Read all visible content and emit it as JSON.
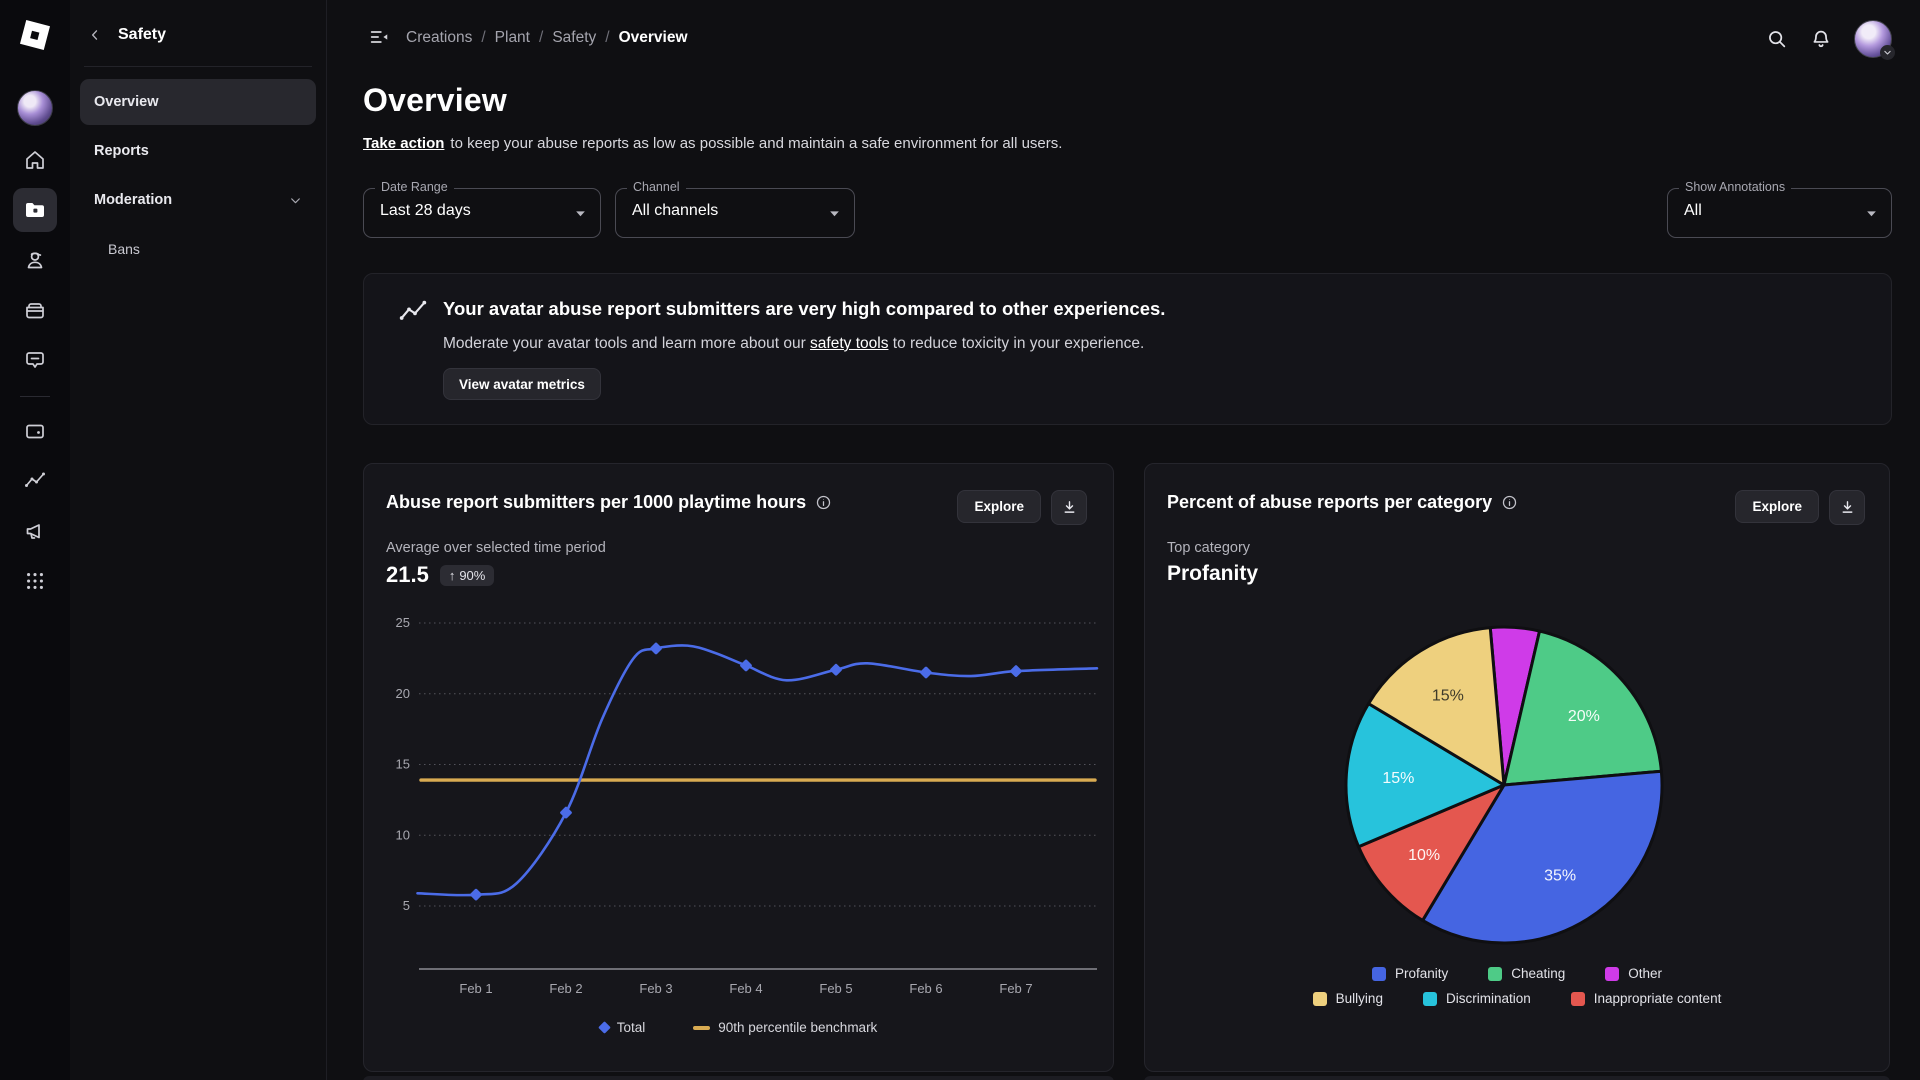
{
  "rail": {
    "icons": [
      "roblox-logo",
      "user-avatar",
      "home",
      "creations-folder",
      "avatar-person",
      "store-box",
      "messages",
      "wallet",
      "analytics",
      "megaphone",
      "apps-grid"
    ],
    "active_icon": "creations-folder"
  },
  "sidebar": {
    "title": "Safety",
    "items": [
      {
        "label": "Overview",
        "active": true
      },
      {
        "label": "Reports",
        "active": false
      },
      {
        "label": "Moderation",
        "active": false,
        "expandable": true
      },
      {
        "label": "Bans",
        "active": false,
        "indented": true
      }
    ]
  },
  "topbar": {
    "breadcrumbs": [
      "Creations",
      "Plant",
      "Safety",
      "Overview"
    ],
    "separator": "/"
  },
  "page": {
    "title": "Overview",
    "subtitle_link": "Take action",
    "subtitle_rest": "to keep your abuse reports as low as possible and maintain a safe environment for all users."
  },
  "filters": [
    {
      "label": "Date Range",
      "value": "Last 28 days"
    },
    {
      "label": "Channel",
      "value": "All channels"
    },
    {
      "label": "Show Annotations",
      "value": "All"
    }
  ],
  "banner": {
    "title": "Your avatar abuse report submitters are very high compared to other experiences.",
    "body_prefix": "Moderate your avatar tools and learn more about our ",
    "body_link": "safety tools",
    "body_suffix": " to reduce toxicity in your experience.",
    "button_label": "View avatar metrics"
  },
  "chart_data": [
    {
      "type": "line",
      "title": "Abuse report submitters per 1000 playtime hours",
      "kpi_label": "Average over selected time period",
      "kpi_value": "21.5",
      "kpi_arrow": "↑",
      "kpi_delta": "90%",
      "kpi_delta_direction": "up",
      "explore_label": "Explore",
      "categories": [
        "Feb 1",
        "Feb 2",
        "Feb 3",
        "Feb 4",
        "Feb 5",
        "Feb 6",
        "Feb 7"
      ],
      "series": [
        {
          "name": "Total",
          "color": "#4b6ce8",
          "marker": "diamond",
          "values": [
            5.8,
            11.6,
            23.2,
            22.0,
            21.7,
            21.5,
            21.6
          ]
        },
        {
          "name": "90th percentile benchmark",
          "color": "#d9ab52",
          "type": "horizontal-benchmark",
          "value": 13.9
        }
      ],
      "curve_samples": [
        [
          0.35,
          5.9
        ],
        [
          1,
          5.8
        ],
        [
          1.45,
          6.6
        ],
        [
          2,
          11.6
        ],
        [
          2.4,
          18.2
        ],
        [
          2.75,
          22.5
        ],
        [
          3,
          23.2
        ],
        [
          3.35,
          23.4
        ],
        [
          3.65,
          22.9
        ],
        [
          4,
          22.0
        ],
        [
          4.45,
          20.95
        ],
        [
          5,
          21.7
        ],
        [
          5.35,
          22.15
        ],
        [
          6,
          21.5
        ],
        [
          6.5,
          21.25
        ],
        [
          7,
          21.6
        ],
        [
          7.9,
          21.8
        ]
      ],
      "ylim": [
        5,
        25
      ],
      "yticks": [
        5,
        10,
        15,
        20,
        25
      ],
      "grid": "dotted-horizontal",
      "legend_position": "bottom"
    },
    {
      "type": "pie",
      "title": "Percent of abuse reports per category",
      "top_category_label": "Top category",
      "top_category": "Profanity",
      "explore_label": "Explore",
      "start_angle_deg": -5,
      "slices": [
        {
          "label": "Other",
          "value": 5,
          "color": "#cf3be8",
          "data_label": ""
        },
        {
          "label": "Cheating",
          "value": 20,
          "color": "#4ecb87",
          "data_label": "20%"
        },
        {
          "label": "Profanity",
          "value": 35,
          "color": "#4565e2",
          "data_label": "35%"
        },
        {
          "label": "Inappropriate content",
          "value": 10,
          "color": "#e4574f",
          "data_label": "10%"
        },
        {
          "label": "Discrimination",
          "value": 15,
          "color": "#27c3dc",
          "data_label": "15%"
        },
        {
          "label": "Bullying",
          "value": 15,
          "color": "#eed07e",
          "data_label": "15%",
          "data_label_color": "#3f3b2a"
        }
      ],
      "legend_rows": [
        [
          "Profanity",
          "Cheating",
          "Other"
        ],
        [
          "Bullying",
          "Discrimination",
          "Inappropriate content"
        ]
      ]
    }
  ]
}
